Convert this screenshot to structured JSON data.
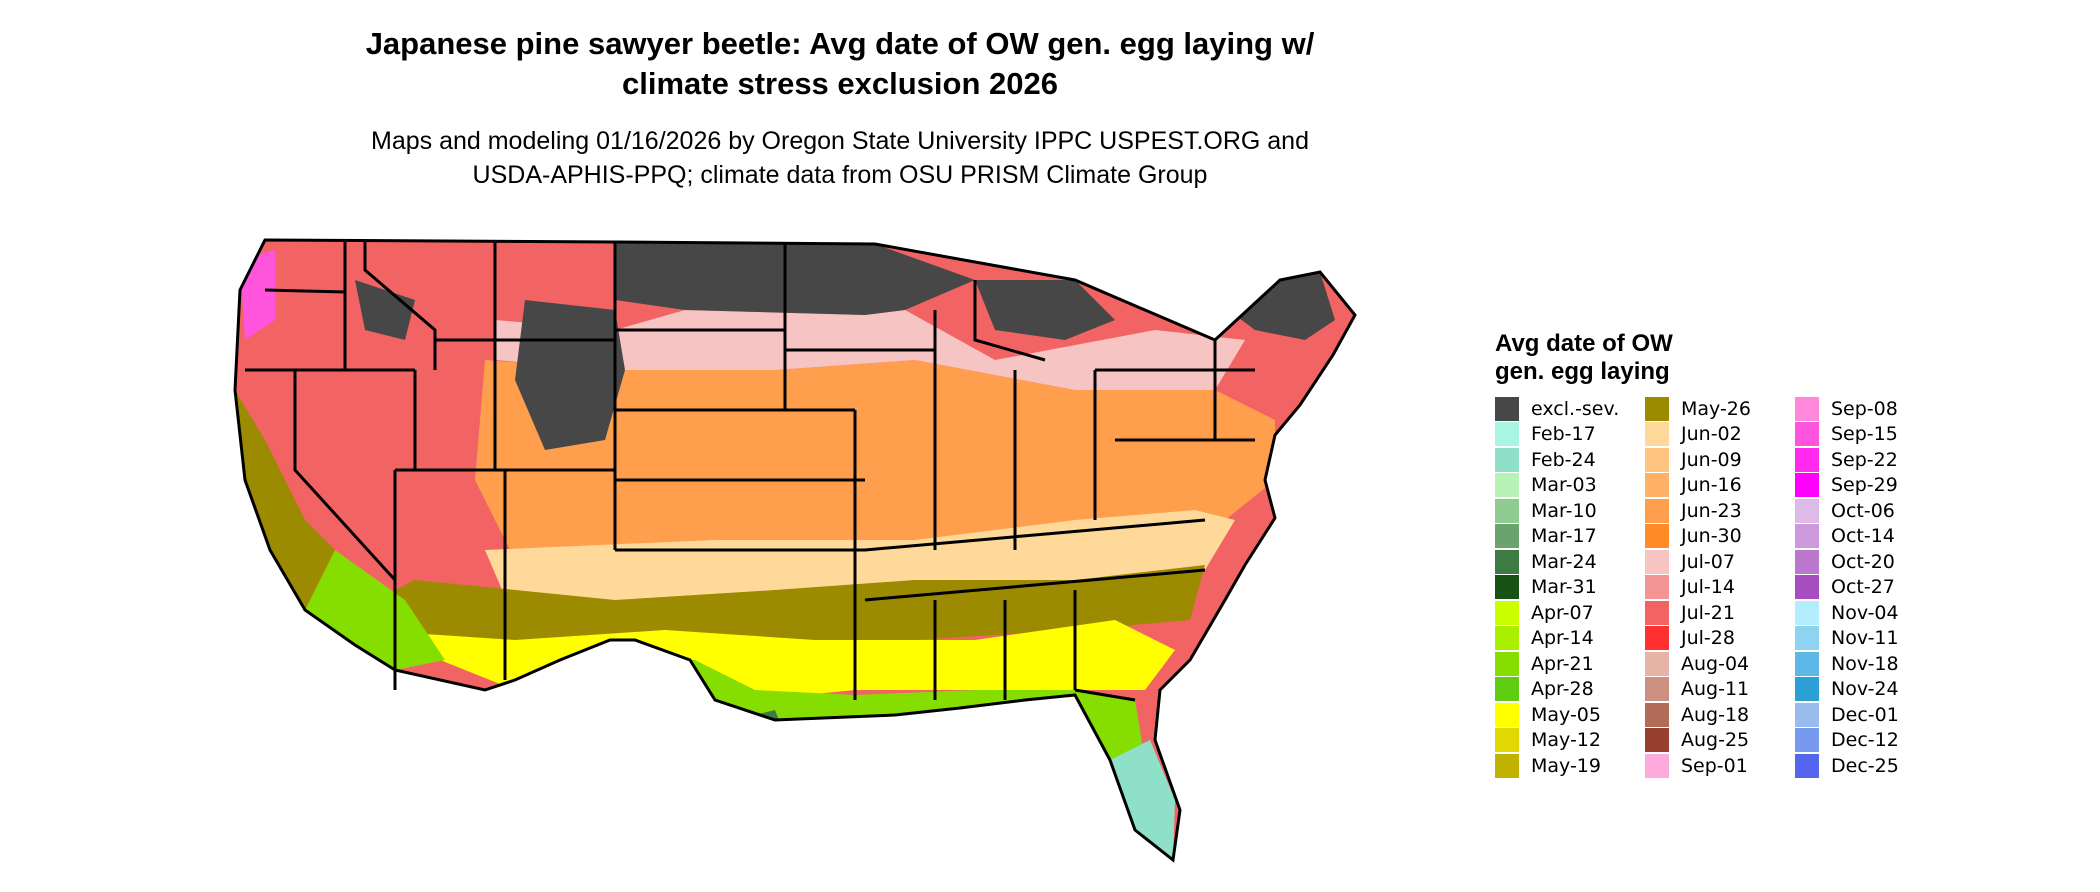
{
  "title_line1": "Japanese pine sawyer beetle: Avg date of OW gen. egg laying w/",
  "title_line2": "climate stress exclusion 2026",
  "subtitle_line1": "Maps and modeling 01/16/2026 by Oregon State University IPPC USPEST.ORG and",
  "subtitle_line2": "USDA-APHIS-PPQ; climate data from OSU PRISM Climate Group",
  "legend": {
    "title_line1": "Avg date of OW",
    "title_line2": "gen. egg laying",
    "items": [
      {
        "label": "excl.-sev.",
        "color": "#474747"
      },
      {
        "label": "Feb-17",
        "color": "#a8f5e2"
      },
      {
        "label": "Feb-24",
        "color": "#8ee0c9"
      },
      {
        "label": "Mar-03",
        "color": "#b7f2b7"
      },
      {
        "label": "Mar-10",
        "color": "#8fcc92"
      },
      {
        "label": "Mar-17",
        "color": "#69a36d"
      },
      {
        "label": "Mar-24",
        "color": "#3e7a43"
      },
      {
        "label": "Mar-31",
        "color": "#155214"
      },
      {
        "label": "Apr-07",
        "color": "#c9ff00"
      },
      {
        "label": "Apr-14",
        "color": "#a8ef00"
      },
      {
        "label": "Apr-21",
        "color": "#86dd00"
      },
      {
        "label": "Apr-28",
        "color": "#5ecc10"
      },
      {
        "label": "May-05",
        "color": "#ffff00"
      },
      {
        "label": "May-12",
        "color": "#e0d800"
      },
      {
        "label": "May-19",
        "color": "#bfb200"
      },
      {
        "label": "May-26",
        "color": "#9c8a00"
      },
      {
        "label": "Jun-02",
        "color": "#ffd99a"
      },
      {
        "label": "Jun-09",
        "color": "#ffc580"
      },
      {
        "label": "Jun-16",
        "color": "#ffb266"
      },
      {
        "label": "Jun-23",
        "color": "#ff9e4d"
      },
      {
        "label": "Jun-30",
        "color": "#ff8a26"
      },
      {
        "label": "Jul-07",
        "color": "#f7c4c4"
      },
      {
        "label": "Jul-14",
        "color": "#f59494"
      },
      {
        "label": "Jul-21",
        "color": "#f26464"
      },
      {
        "label": "Jul-28",
        "color": "#ff3030"
      },
      {
        "label": "Aug-04",
        "color": "#e6b4a6"
      },
      {
        "label": "Aug-11",
        "color": "#cc9080"
      },
      {
        "label": "Aug-18",
        "color": "#b36b5a"
      },
      {
        "label": "Aug-25",
        "color": "#963f2e"
      },
      {
        "label": "Sep-01",
        "color": "#ffaadd"
      },
      {
        "label": "Sep-08",
        "color": "#ff88dd"
      },
      {
        "label": "Sep-15",
        "color": "#ff55dd"
      },
      {
        "label": "Sep-22",
        "color": "#ff2aee"
      },
      {
        "label": "Sep-29",
        "color": "#ff00ff"
      },
      {
        "label": "Oct-06",
        "color": "#ddbbe6"
      },
      {
        "label": "Oct-14",
        "color": "#cc99dd"
      },
      {
        "label": "Oct-20",
        "color": "#bb77cc"
      },
      {
        "label": "Oct-27",
        "color": "#a64dbf"
      },
      {
        "label": "Nov-04",
        "color": "#b3eeff"
      },
      {
        "label": "Nov-11",
        "color": "#8ed4f2"
      },
      {
        "label": "Nov-18",
        "color": "#5cb8e6"
      },
      {
        "label": "Nov-24",
        "color": "#2aa0d4"
      },
      {
        "label": "Dec-01",
        "color": "#99bbee"
      },
      {
        "label": "Dec-12",
        "color": "#7799ee"
      },
      {
        "label": "Dec-25",
        "color": "#5566ee"
      }
    ]
  },
  "map_colors": {
    "excluded": "#474747",
    "northern_red": "#f26464",
    "pink": "#f7c4c4",
    "orange": "#ff9e4d",
    "light_orange": "#ffd99a",
    "olive": "#9c8a00",
    "yellow": "#ffff00",
    "green": "#86dd00",
    "dark_green": "#3e7a43",
    "mint": "#8ee0c9",
    "magenta": "#ff55dd",
    "border": "#000000"
  }
}
